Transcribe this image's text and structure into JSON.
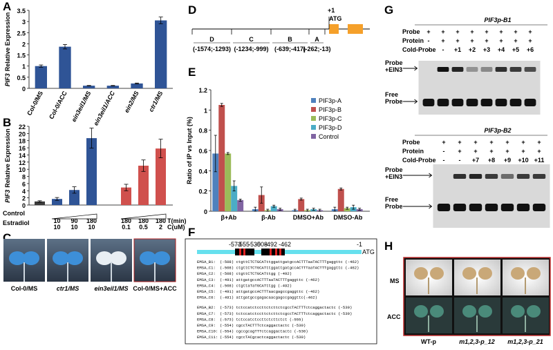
{
  "panel_labels": [
    "A",
    "B",
    "C",
    "D",
    "E",
    "F",
    "G",
    "H"
  ],
  "chart_data": [
    {
      "type": "bar",
      "ylabel_gene": "PIF3",
      "ylabel": "Relative Expression",
      "categories": [
        "Col-0/MS",
        "Col-0/ACC",
        "ein3eil1/MS",
        "ein3eil1/ACC",
        "ein2/MS",
        "ctr1/MS"
      ],
      "values": [
        1.0,
        1.87,
        0.12,
        0.12,
        0.22,
        3.05
      ],
      "errors": [
        0.05,
        0.1,
        0.01,
        0.01,
        0.02,
        0.15
      ],
      "color": "#2f5496",
      "ylim": [
        0,
        3.5
      ],
      "yticks": [
        0,
        0.5,
        1,
        1.5,
        2,
        2.5,
        3,
        3.5
      ]
    },
    {
      "type": "grouped_conditions",
      "ylabel_gene": "PIF3",
      "ylabel": "Relative Expression",
      "values": [
        1.0,
        1.7,
        4.2,
        18.7,
        4.9,
        11.0,
        15.8
      ],
      "errors": [
        0.2,
        0.4,
        0.9,
        2.8,
        0.9,
        1.6,
        2.6
      ],
      "colors": [
        "#3a3a3a",
        "#2f5496",
        "#2f5496",
        "#2f5496",
        "#d0504d",
        "#d0504d",
        "#d0504d"
      ],
      "ylim": [
        0,
        22
      ],
      "yticks": [
        0,
        2,
        4,
        6,
        8,
        10,
        12,
        14,
        16,
        18,
        20,
        22
      ],
      "group_labels": [
        "Control",
        "Estradiol"
      ],
      "row_labels": [
        "T(min)",
        "C(uM)"
      ],
      "t_values": [
        null,
        10,
        90,
        180,
        180,
        180,
        180
      ],
      "c_values": [
        null,
        10,
        10,
        10,
        0.1,
        0.5,
        2
      ]
    },
    {
      "type": "grouped_bar",
      "ylabel": "Ratio of IP vs Input (%)",
      "categories": [
        "β+Ab",
        "β-Ab",
        "DMSO+Ab",
        "DMSO-Ab"
      ],
      "series": [
        {
          "name": "PIF3p-A",
          "color": "#4f81bd",
          "values": [
            0.57,
            0.02,
            0.01,
            0.02
          ],
          "errors": [
            0.18,
            0.02,
            0.01,
            0.02
          ]
        },
        {
          "name": "PIF3p-B",
          "color": "#c0504d",
          "values": [
            1.05,
            0.16,
            0.12,
            0.22
          ],
          "errors": [
            0.015,
            0.08,
            0.01,
            0.01
          ]
        },
        {
          "name": "PIF3p-C",
          "color": "#9bbb59",
          "values": [
            0.57,
            0.01,
            0.01,
            0.03
          ],
          "errors": [
            0.01,
            0.01,
            0.01,
            0.01
          ]
        },
        {
          "name": "PIF3p-D",
          "color": "#4bacc6",
          "values": [
            0.25,
            0.05,
            0.02,
            0.04
          ],
          "errors": [
            0.05,
            0.01,
            0.01,
            0.02
          ]
        },
        {
          "name": "Control",
          "color": "#8064a2",
          "values": [
            0.11,
            0.02,
            0.01,
            0.02
          ],
          "errors": [
            0.01,
            0.01,
            0.01,
            0.01
          ]
        }
      ],
      "ylim": [
        0,
        1.2
      ],
      "yticks": [
        0,
        0.2,
        0.4,
        0.6,
        0.8,
        1,
        1.2
      ],
      "legend": "right"
    }
  ],
  "panel_c": {
    "labels": [
      "Col-0/MS",
      "ctr1/MS",
      "ein3eil1/MS",
      "Col-0/MS+ACC"
    ]
  },
  "panel_d": {
    "regions": [
      {
        "name": "D",
        "range": "(-1574;-1293)"
      },
      {
        "name": "C",
        "range": "(-1234;-999)"
      },
      {
        "name": "B",
        "range": "(-639;-417)"
      },
      {
        "name": "A",
        "range": "(-262;-13)"
      }
    ],
    "tss": "+1",
    "atg": "ATG"
  },
  "panel_f": {
    "positions": [
      -573,
      -555,
      -530,
      -508,
      -492,
      -462,
      -1
    ],
    "atg": "ATG",
    "rows": [
      {
        "name": "EMSA_B1:",
        "seq": "(-508) ctgttCTCTGCATttggattgatgccACTTTaaTACTTTgaggttc (-462)"
      },
      {
        "name": "EMSA_C1:",
        "seq": "(-508) ctgttCTCTGCATttggattgatgccACTTTaaTACTTTgaggttc (-462)"
      },
      {
        "name": "EMSA_C2:",
        "seq": "(-508) ctgttCTCTGCATttgg (-492)"
      },
      {
        "name": "EMSA_C3:",
        "seq": "(-491) attgatgccACTTTaaTACTTTgaggttc (-462)"
      },
      {
        "name": "EMSA_C4:",
        "seq": "(-508) ctgttaTaTGCATttgg (-492)"
      },
      {
        "name": "EMSA_C5:",
        "seq": "(-491) attgatgccACTTTaacgagccgaggttc (-462)"
      },
      {
        "name": "EMSA_C6:",
        "seq": "(-491) attgatgccgagacaacgagccgaggttc(-462)"
      },
      {
        "name": "EMSA_B2:",
        "seq": "(-573) tctccatctccttctcttctcgccTACTTTctcaggactactc (-530)"
      },
      {
        "name": "EMSA_C7:",
        "seq": "(-573) tctccatctccttctcttctcgccTACTTTctcaggactactc (-530)"
      },
      {
        "name": "EMSA_C8:",
        "seq": "(-573) tctccatctccttctcttctct (-555)"
      },
      {
        "name": "EMSA_C9:",
        "seq": "(-554) cgccTACTTTctcaggactactc (-530)"
      },
      {
        "name": "EMSA_C10:",
        "seq": "(-554) cgccgcagTTTctcaggactactc (-530)"
      },
      {
        "name": "EMSA_C11:",
        "seq": "(-554) cgccTACgcactcaggactactc (-530)"
      }
    ]
  },
  "panel_g": {
    "gels": [
      {
        "title": "PIF3p-B1",
        "row_labels": [
          "Probe",
          "Protein",
          "Cold-Probe"
        ],
        "lanes": [
          [
            "+",
            "+",
            "+",
            "+",
            "+",
            "+",
            "+",
            "+"
          ],
          [
            "-",
            "+",
            "+",
            "+",
            "+",
            "+",
            "+",
            "+"
          ],
          [
            "-",
            "-",
            "+1",
            "+2",
            "+3",
            "+4",
            "+5",
            "+6"
          ]
        ],
        "band_labels": [
          [
            "Probe",
            "+EIN3"
          ],
          [
            "Free",
            "Probe"
          ]
        ]
      },
      {
        "title": "PIF3p-B2",
        "row_labels": [
          "Probe",
          "Protein",
          "Cold-Probe"
        ],
        "lanes": [
          [
            "+",
            "+",
            "+",
            "+",
            "+",
            "+",
            "+"
          ],
          [
            "-",
            "+",
            "+",
            "+",
            "+",
            "+",
            "+"
          ],
          [
            "-",
            "-",
            "+7",
            "+8",
            "+9",
            "+10",
            "+11"
          ]
        ],
        "band_labels": [
          [
            "Probe",
            "+EIN3"
          ],
          [
            "Free",
            "Probe"
          ]
        ]
      }
    ]
  },
  "panel_h": {
    "rows": [
      "MS",
      "ACC"
    ],
    "columns": [
      "WT-p",
      "m1,2,3-p_12",
      "m1,2,3-p_21"
    ]
  }
}
